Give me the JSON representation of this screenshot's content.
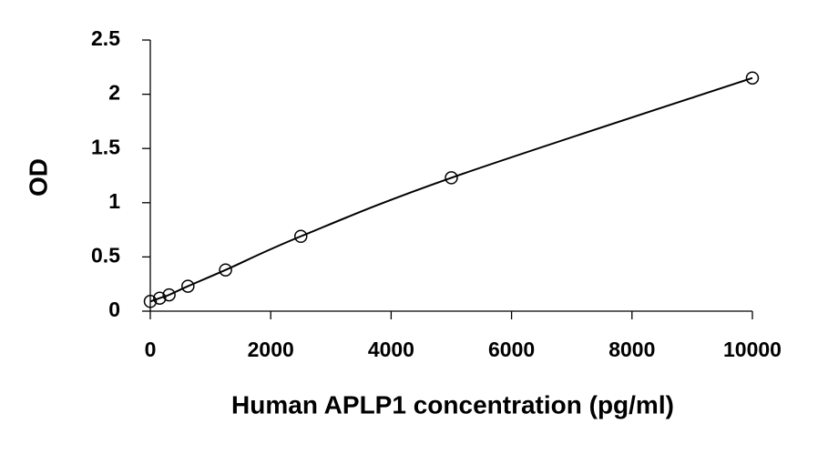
{
  "chart_data": {
    "type": "scatter",
    "x_label": "Human APLP1 concentration (pg/ml)",
    "y_label": "OD",
    "x": [
      0,
      156,
      312,
      625,
      1250,
      2500,
      5000,
      10000
    ],
    "values": [
      0.09,
      0.12,
      0.15,
      0.23,
      0.38,
      0.69,
      1.23,
      2.15
    ],
    "color": "#000000",
    "trendline": true,
    "xlim": [
      0,
      10000
    ],
    "xticks": [
      0,
      2000,
      4000,
      6000,
      8000,
      10000
    ],
    "ylim": [
      0,
      2.5
    ],
    "yticks": [
      0,
      0.5,
      1,
      1.5,
      2,
      2.5
    ],
    "grid": false
  }
}
